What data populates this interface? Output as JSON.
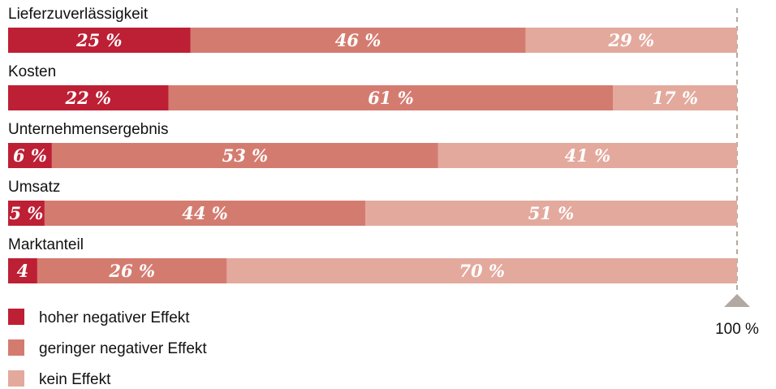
{
  "chart_data": {
    "type": "bar",
    "orientation": "horizontal",
    "stacked": true,
    "categories": [
      "Lieferzuverlässigkeit",
      "Kosten",
      "Unternehmensergebnis",
      "Umsatz",
      "Marktanteil"
    ],
    "series": [
      {
        "name": "hoher negativer Effekt",
        "color": "#bd1f34",
        "values": [
          25,
          22,
          6,
          5,
          4
        ],
        "labels": [
          "25 %",
          "22 %",
          "6 %",
          "5 %",
          "4"
        ]
      },
      {
        "name": "geringer negativer Effekt",
        "color": "#d47b70",
        "values": [
          46,
          61,
          53,
          44,
          26
        ],
        "labels": [
          "46 %",
          "61 %",
          "53 %",
          "44 %",
          "26 %"
        ]
      },
      {
        "name": "kein Effekt",
        "color": "#e3a99d",
        "values": [
          29,
          17,
          41,
          51,
          70
        ],
        "labels": [
          "29 %",
          "17 %",
          "41 %",
          "51 %",
          "70 %"
        ]
      }
    ],
    "xlim": [
      0,
      100
    ],
    "reference_line": {
      "value": 100,
      "label": "100 %",
      "color": "#b3a9a2"
    },
    "legend_position": "bottom-left"
  }
}
